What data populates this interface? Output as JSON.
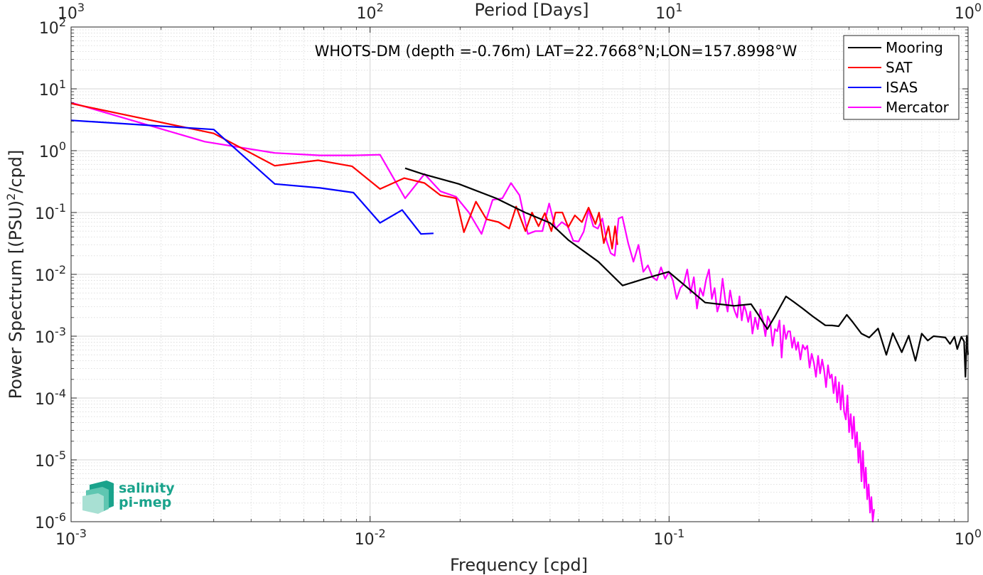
{
  "chart_data": {
    "type": "line",
    "title": "WHOTS-DM (depth =-0.76m) LAT=22.7668°N;LON=157.8998°W",
    "xlabel": "Frequency [cpd]",
    "ylabel": "Power Spectrum [(PSU)",
    "ylabel_sup": "2",
    "ylabel_tail": "/cpd]",
    "top_xlabel": "Period [Days]",
    "xscale": "log",
    "yscale": "log",
    "xlim": [
      0.001,
      1
    ],
    "ylim": [
      1e-06,
      100
    ],
    "grid": true,
    "legend_position": "top-right",
    "x_ticks": [
      {
        "value": 0.001,
        "base": "10",
        "exp": "-3"
      },
      {
        "value": 0.01,
        "base": "10",
        "exp": "-2"
      },
      {
        "value": 0.1,
        "base": "10",
        "exp": "-1"
      },
      {
        "value": 1,
        "base": "10",
        "exp": "0"
      }
    ],
    "top_ticks": [
      {
        "value": 0.001,
        "base": "10",
        "exp": "3"
      },
      {
        "value": 0.01,
        "base": "10",
        "exp": "2"
      },
      {
        "value": 0.1,
        "base": "10",
        "exp": "1"
      },
      {
        "value": 1,
        "base": "10",
        "exp": "0"
      }
    ],
    "y_ticks": [
      {
        "value": 100,
        "base": "10",
        "exp": "2"
      },
      {
        "value": 10,
        "base": "10",
        "exp": "1"
      },
      {
        "value": 1,
        "base": "10",
        "exp": "0"
      },
      {
        "value": 0.1,
        "base": "10",
        "exp": "-1"
      },
      {
        "value": 0.01,
        "base": "10",
        "exp": "-2"
      },
      {
        "value": 0.001,
        "base": "10",
        "exp": "-3"
      },
      {
        "value": 0.0001,
        "base": "10",
        "exp": "-4"
      },
      {
        "value": 1e-05,
        "base": "10",
        "exp": "-5"
      },
      {
        "value": 1e-06,
        "base": "10",
        "exp": "-6"
      }
    ],
    "series": [
      {
        "name": "Mooring",
        "color": "#000000",
        "x": [
          0.0131,
          0.015,
          0.0198,
          0.0264,
          0.033,
          0.04,
          0.046,
          0.058,
          0.0699,
          0.0829,
          0.0996,
          0.132,
          0.165,
          0.188,
          0.199,
          0.213,
          0.226,
          0.246,
          0.261,
          0.28,
          0.302,
          0.333,
          0.351,
          0.369,
          0.393,
          0.411,
          0.44,
          0.467,
          0.5,
          0.533,
          0.56,
          0.6,
          0.633,
          0.667,
          0.7,
          0.733,
          0.767,
          0.8,
          0.84,
          0.87,
          0.9,
          0.92,
          0.95,
          0.97,
          0.98,
          0.99,
          1.0
        ],
        "y": [
          0.52,
          0.42,
          0.29,
          0.17,
          0.1,
          0.068,
          0.036,
          0.016,
          0.0066,
          0.0085,
          0.011,
          0.0035,
          0.0031,
          0.0033,
          0.0022,
          0.0013,
          0.0021,
          0.0044,
          0.0036,
          0.0028,
          0.0021,
          0.0015,
          0.00149,
          0.00145,
          0.00222,
          0.0017,
          0.0011,
          0.00095,
          0.00133,
          0.0005,
          0.00112,
          0.00055,
          0.00102,
          0.0004,
          0.0011,
          0.00085,
          0.001,
          0.00098,
          0.00095,
          0.00075,
          0.00098,
          0.00062,
          0.00098,
          0.00082,
          0.00022,
          0.00102,
          0.0005
        ]
      },
      {
        "name": "SAT",
        "color": "#ff0000",
        "x": [
          0.001,
          0.003,
          0.0048,
          0.0067,
          0.0087,
          0.0108,
          0.013,
          0.0152,
          0.0172,
          0.0194,
          0.0206,
          0.0226,
          0.0245,
          0.0269,
          0.0292,
          0.0308,
          0.0331,
          0.0348,
          0.0366,
          0.0384,
          0.0404,
          0.0417,
          0.044,
          0.046,
          0.0484,
          0.0511,
          0.0538,
          0.0567,
          0.0583,
          0.0605,
          0.0627,
          0.0645,
          0.066,
          0.0672
        ],
        "y": [
          5.8,
          1.9,
          0.57,
          0.7,
          0.56,
          0.24,
          0.36,
          0.3,
          0.19,
          0.17,
          0.048,
          0.15,
          0.078,
          0.07,
          0.055,
          0.125,
          0.05,
          0.1,
          0.06,
          0.098,
          0.05,
          0.1,
          0.1,
          0.058,
          0.09,
          0.07,
          0.12,
          0.065,
          0.1,
          0.032,
          0.06,
          0.026,
          0.06,
          0.03
        ]
      },
      {
        "name": "ISAS",
        "color": "#0000ff",
        "x": [
          0.001,
          0.003,
          0.0048,
          0.0068,
          0.0088,
          0.0108,
          0.0128,
          0.0148,
          0.0163
        ],
        "y": [
          3.1,
          2.2,
          0.29,
          0.25,
          0.21,
          0.068,
          0.11,
          0.045,
          0.046
        ]
      },
      {
        "name": "Mercator",
        "color": "#ff00ff",
        "x": [
          0.001,
          0.0028,
          0.0048,
          0.0068,
          0.0088,
          0.0108,
          0.0131,
          0.0152,
          0.0172,
          0.0194,
          0.0214,
          0.0236,
          0.0257,
          0.0277,
          0.0296,
          0.0316,
          0.0337,
          0.0357,
          0.0377,
          0.0397,
          0.0417,
          0.0438,
          0.0458,
          0.0478,
          0.0498,
          0.0518,
          0.0538,
          0.0558,
          0.0578,
          0.0598,
          0.0618,
          0.0638,
          0.0658,
          0.0678,
          0.0698,
          0.073,
          0.076,
          0.079,
          0.082,
          0.085,
          0.088,
          0.091,
          0.094,
          0.097,
          0.1,
          0.103,
          0.106,
          0.109,
          0.112,
          0.115,
          0.118,
          0.121,
          0.124,
          0.127,
          0.13,
          0.133,
          0.136,
          0.139,
          0.142,
          0.145,
          0.148,
          0.151,
          0.154,
          0.157,
          0.16,
          0.163,
          0.166,
          0.169,
          0.172,
          0.175,
          0.178,
          0.181,
          0.184,
          0.187,
          0.19,
          0.194,
          0.198,
          0.202,
          0.206,
          0.21,
          0.214,
          0.218,
          0.222,
          0.226,
          0.23,
          0.234,
          0.238,
          0.242,
          0.246,
          0.25,
          0.254,
          0.258,
          0.262,
          0.266,
          0.27,
          0.275,
          0.28,
          0.285,
          0.29,
          0.295,
          0.3,
          0.305,
          0.31,
          0.315,
          0.32,
          0.325,
          0.33,
          0.335,
          0.34,
          0.345,
          0.35,
          0.355,
          0.36,
          0.365,
          0.37,
          0.375,
          0.38,
          0.385,
          0.39,
          0.395,
          0.4,
          0.405,
          0.41,
          0.415,
          0.42,
          0.425,
          0.43,
          0.435,
          0.44,
          0.445,
          0.45,
          0.455,
          0.46,
          0.465,
          0.47,
          0.475,
          0.48,
          0.485
        ],
        "y": [
          6.0,
          1.4,
          0.92,
          0.84,
          0.84,
          0.86,
          0.17,
          0.42,
          0.22,
          0.18,
          0.1,
          0.045,
          0.16,
          0.17,
          0.3,
          0.19,
          0.045,
          0.05,
          0.05,
          0.14,
          0.055,
          0.07,
          0.06,
          0.035,
          0.034,
          0.049,
          0.11,
          0.06,
          0.055,
          0.08,
          0.035,
          0.022,
          0.02,
          0.08,
          0.085,
          0.032,
          0.016,
          0.03,
          0.011,
          0.014,
          0.009,
          0.008,
          0.013,
          0.0085,
          0.011,
          0.008,
          0.004,
          0.006,
          0.007,
          0.012,
          0.005,
          0.009,
          0.0028,
          0.006,
          0.0045,
          0.0082,
          0.012,
          0.004,
          0.006,
          0.0025,
          0.0035,
          0.0085,
          0.004,
          0.0025,
          0.0055,
          0.0033,
          0.0025,
          0.002,
          0.0044,
          0.0018,
          0.0032,
          0.0025,
          0.0017,
          0.0025,
          0.0011,
          0.002,
          0.0013,
          0.0027,
          0.0018,
          0.001,
          0.0021,
          0.0017,
          0.0007,
          0.0013,
          0.0012,
          0.0018,
          0.00045,
          0.0015,
          0.0009,
          0.0012,
          0.0012,
          0.00065,
          0.00095,
          0.0006,
          0.0008,
          0.00042,
          0.00072,
          0.00061,
          0.0007,
          0.00031,
          0.00052,
          0.00037,
          0.00022,
          0.00048,
          0.00025,
          0.00042,
          0.00028,
          0.00015,
          0.00034,
          0.00021,
          0.00024,
          0.00012,
          0.00022,
          8.5e-05,
          0.00018,
          6.5e-05,
          0.00016,
          6e-05,
          4.5e-05,
          0.00011,
          2.8e-05,
          5.5e-05,
          2.2e-05,
          5e-05,
          1.6e-05,
          2.8e-05,
          9e-06,
          1.9e-05,
          4.5e-06,
          1.4e-05,
          3.5e-06,
          7.5e-06,
          2.3e-06,
          4e-06,
          1.4e-06,
          2.5e-06,
          1e-06,
          1.6e-06
        ]
      }
    ]
  },
  "legend": [
    "Mooring",
    "SAT",
    "ISAS",
    "Mercator"
  ],
  "logo": {
    "line1": "salinity",
    "line2": "pi-mep",
    "color": "#1aa38c"
  }
}
